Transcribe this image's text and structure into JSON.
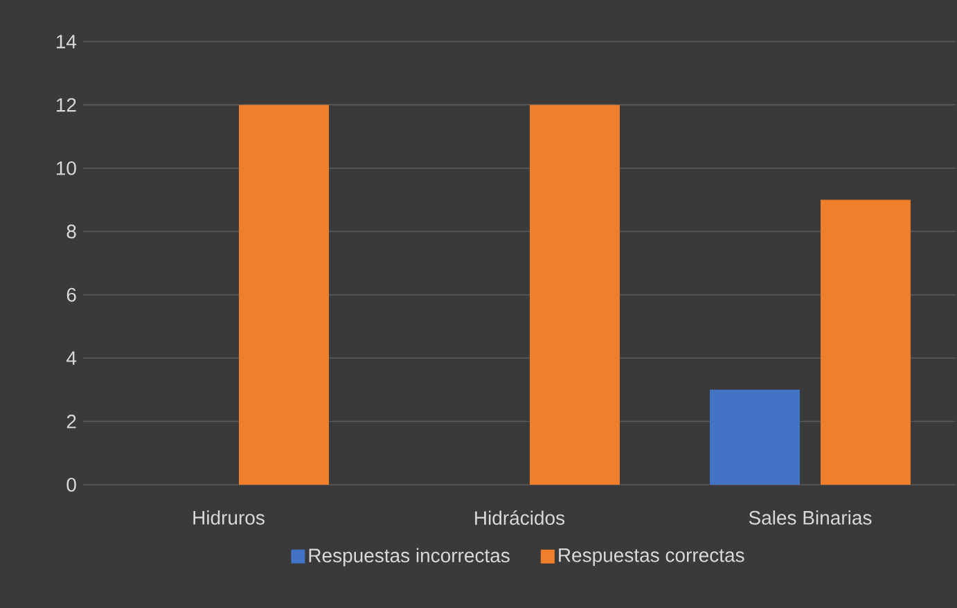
{
  "chart_data": {
    "type": "bar",
    "categories": [
      "Hidruros",
      "Hidrácidos",
      "Sales Binarias"
    ],
    "series": [
      {
        "name": "Respuestas incorrectas",
        "color": "#4472c4",
        "values": [
          0,
          0,
          3
        ]
      },
      {
        "name": "Respuestas correctas",
        "color": "#f07f2c",
        "values": [
          12,
          12,
          9
        ]
      }
    ],
    "ylim": [
      0,
      14
    ],
    "yticks": [
      0,
      2,
      4,
      6,
      8,
      10,
      12,
      14
    ],
    "grid": "y",
    "legend": "bottom"
  }
}
